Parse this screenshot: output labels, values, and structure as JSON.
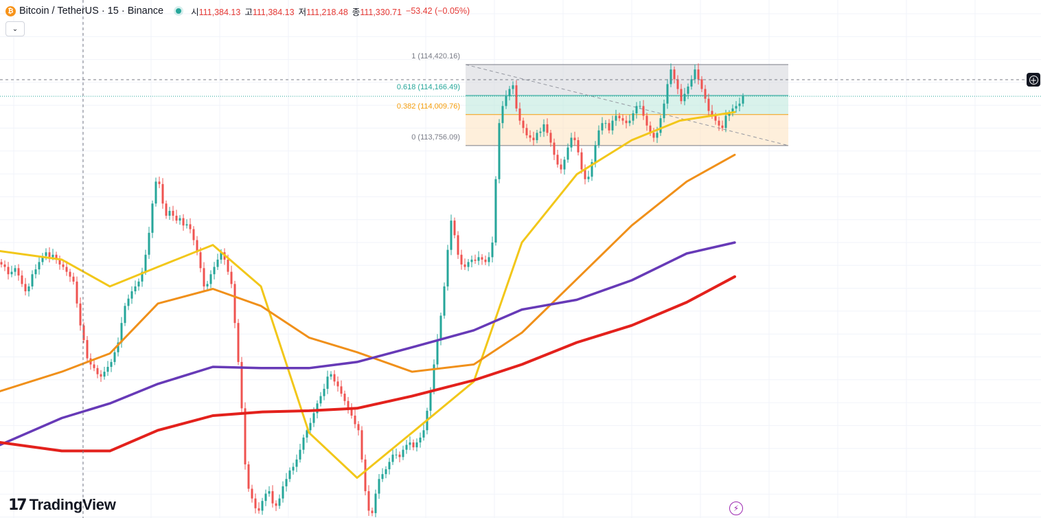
{
  "header": {
    "coin_icon": "bitcoin-icon",
    "coin_glyph": "₿",
    "symbol": "Bitcoin / TetherUS · 15 · Binance",
    "market_status": "open",
    "open_label": "시",
    "open_value": "111,384.13",
    "high_label": "고",
    "high_value": "111,384.13",
    "low_label": "저",
    "low_value": "111,218.48",
    "close_label": "종",
    "close_value": "111,330.71",
    "change": "−53.42 (−0.05%)"
  },
  "controls": {
    "collapse_icon": "chevron-down-icon",
    "collapse_glyph": "⌄",
    "add_icon": "plus-circle-icon",
    "add_glyph": "+",
    "flash_icon": "lightning-icon",
    "flash_glyph": "⚡"
  },
  "branding": {
    "logo_mark": "17",
    "logo_text": "TradingView"
  },
  "colors": {
    "up": "#26a69a",
    "down": "#ef5350",
    "ma_fast": "#f2c71a",
    "ma_mid": "#f0901a",
    "ma_slow": "#673ab7",
    "ma_long": "#e3211c",
    "fib_top": "#d7d8de",
    "fib_mid": "#bfe9de",
    "fib_low": "#fde5c3"
  },
  "chart_data": {
    "type": "candlestick",
    "symbol": "BTCUSDT",
    "interval": "15",
    "exchange": "Binance",
    "ylim": [
      110700,
      114950
    ],
    "fib_levels": [
      {
        "ratio": "1",
        "price": 114420.16,
        "label": "1 (114,420.16)"
      },
      {
        "ratio": "0.618",
        "price": 114166.49,
        "label": "0.618 (114,166.49)"
      },
      {
        "ratio": "0.382",
        "price": 114009.76,
        "label": "0.382 (114,009.76)"
      },
      {
        "ratio": "0",
        "price": 113756.09,
        "label": "0 (113,756.09)"
      }
    ],
    "closes": [
      112780,
      112760,
      112700,
      112720,
      112750,
      112690,
      112620,
      112560,
      112600,
      112700,
      112740,
      112800,
      112850,
      112880,
      112840,
      112860,
      112820,
      112780,
      112760,
      112720,
      112680,
      112640,
      112460,
      112280,
      112160,
      112010,
      111960,
      111930,
      111880,
      111860,
      111900,
      111940,
      111980,
      112060,
      112140,
      112300,
      112440,
      112500,
      112560,
      112600,
      112640,
      112720,
      112860,
      113040,
      113280,
      113460,
      113440,
      113280,
      113180,
      113220,
      113180,
      113140,
      113160,
      113100,
      113110,
      113070,
      112980,
      112880,
      112750,
      112600,
      112620,
      112700,
      112760,
      112820,
      112880,
      112820,
      112720,
      112620,
      112300,
      111980,
      111600,
      111140,
      110940,
      110860,
      110780,
      110760,
      110840,
      110900,
      110920,
      110820,
      110800,
      110860,
      110960,
      111020,
      111090,
      111120,
      111180,
      111260,
      111360,
      111420,
      111480,
      111560,
      111640,
      111700,
      111760,
      111860,
      111880,
      111820,
      111780,
      111720,
      111660,
      111600,
      111540,
      111470,
      111420,
      111180,
      110920,
      110760,
      110740,
      110900,
      111020,
      111060,
      111100,
      111160,
      111220,
      111220,
      111200,
      111260,
      111300,
      111320,
      111280,
      111320,
      111360,
      111420,
      111580,
      111740,
      111960,
      112160,
      112360,
      112600,
      112900,
      113140,
      113020,
      112860,
      112780,
      112760,
      112800,
      112820,
      112810,
      112840,
      112820,
      112800,
      112840,
      112960,
      113480,
      113940,
      114080,
      114160,
      114220,
      114250,
      114060,
      113960,
      113900,
      113840,
      113820,
      113800,
      113860,
      113870,
      113930,
      113860,
      113780,
      113680,
      113600,
      113560,
      113640,
      113740,
      113820,
      113800,
      113700,
      113560,
      113480,
      113500,
      113620,
      113760,
      113880,
      113940,
      113940,
      113880,
      113960,
      114000,
      113980,
      113960,
      113940,
      113960,
      114020,
      114080,
      114080,
      114000,
      113920,
      113860,
      113820,
      113860,
      113980,
      114100,
      114260,
      114380,
      114300,
      114220,
      114120,
      114180,
      114240,
      114300,
      114380,
      114300,
      114220,
      114140,
      114040,
      114000,
      113960,
      113920,
      113900,
      114000,
      114020,
      114060,
      114080,
      114100,
      114160
    ],
    "series": [
      {
        "name": "",
        "kind": "moving-average",
        "color_key": "ma_fast",
        "values": [
          [
            0,
            112890
          ],
          [
            90,
            112820
          ],
          [
            160,
            112600
          ],
          [
            230,
            112760
          ],
          [
            310,
            112940
          ],
          [
            380,
            112600
          ],
          [
            450,
            111400
          ],
          [
            520,
            111030
          ],
          [
            600,
            111400
          ],
          [
            690,
            111820
          ],
          [
            760,
            112960
          ],
          [
            840,
            113520
          ],
          [
            920,
            113800
          ],
          [
            990,
            113960
          ],
          [
            1070,
            114030
          ]
        ]
      },
      {
        "name": "",
        "kind": "moving-average",
        "color_key": "ma_mid",
        "values": [
          [
            0,
            111740
          ],
          [
            90,
            111900
          ],
          [
            160,
            112050
          ],
          [
            230,
            112460
          ],
          [
            310,
            112580
          ],
          [
            380,
            112440
          ],
          [
            450,
            112180
          ],
          [
            520,
            112060
          ],
          [
            600,
            111900
          ],
          [
            690,
            111960
          ],
          [
            760,
            112220
          ],
          [
            840,
            112660
          ],
          [
            920,
            113100
          ],
          [
            1000,
            113460
          ],
          [
            1070,
            113680
          ]
        ]
      },
      {
        "name": "",
        "kind": "moving-average",
        "color_key": "ma_slow",
        "values": [
          [
            0,
            111300
          ],
          [
            90,
            111520
          ],
          [
            160,
            111640
          ],
          [
            230,
            111800
          ],
          [
            310,
            111940
          ],
          [
            380,
            111930
          ],
          [
            450,
            111930
          ],
          [
            520,
            111980
          ],
          [
            600,
            112100
          ],
          [
            690,
            112240
          ],
          [
            760,
            112410
          ],
          [
            840,
            112490
          ],
          [
            920,
            112650
          ],
          [
            1000,
            112870
          ],
          [
            1070,
            112960
          ]
        ]
      },
      {
        "name": "",
        "kind": "moving-average",
        "color_key": "ma_long",
        "values": [
          [
            0,
            111320
          ],
          [
            90,
            111250
          ],
          [
            160,
            111250
          ],
          [
            230,
            111420
          ],
          [
            310,
            111540
          ],
          [
            380,
            111570
          ],
          [
            450,
            111580
          ],
          [
            520,
            111600
          ],
          [
            600,
            111700
          ],
          [
            690,
            111830
          ],
          [
            760,
            111960
          ],
          [
            840,
            112140
          ],
          [
            920,
            112280
          ],
          [
            1000,
            112470
          ],
          [
            1070,
            112680
          ]
        ]
      }
    ]
  }
}
